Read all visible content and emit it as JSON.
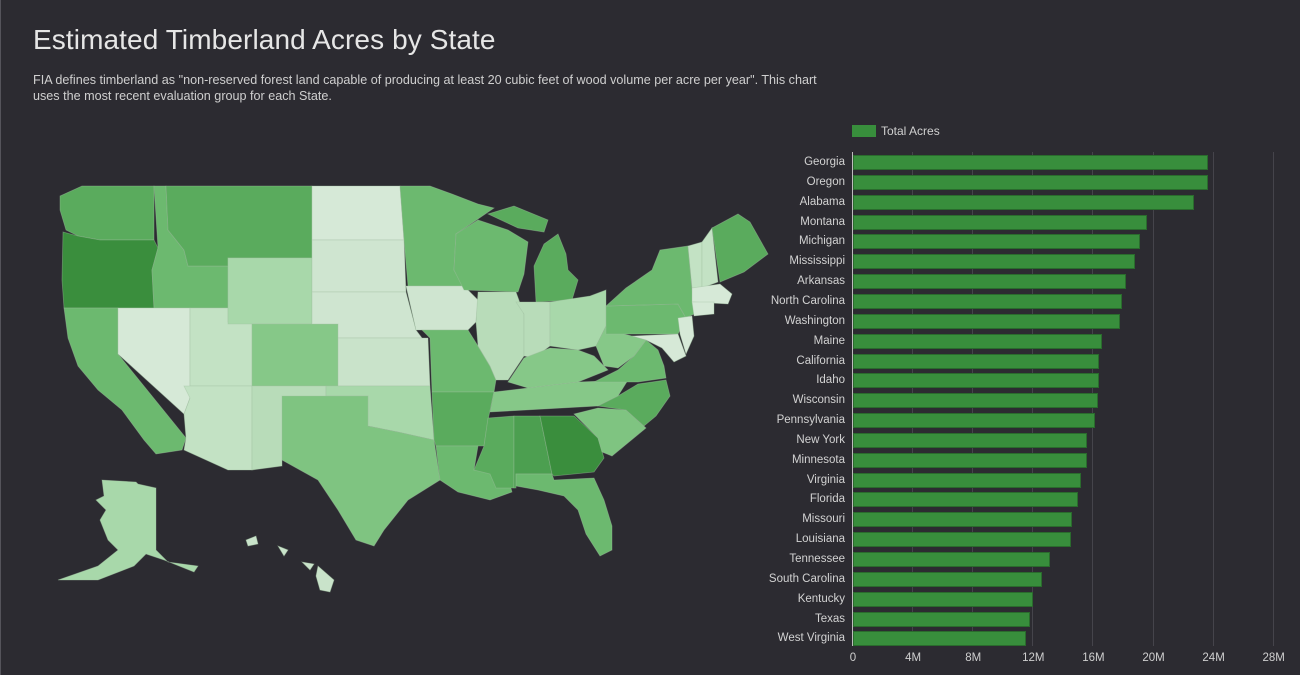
{
  "header": {
    "title": "Estimated Timberland Acres by State",
    "subtitle": "FIA defines timberland as \"non-reserved forest land capable of producing at least 20 cubic feet of wood volume per acre per year\". This chart uses the most recent evaluation group for each State."
  },
  "colors": {
    "background": "#2c2b31",
    "bar": "#388e3c",
    "gridline": "#45444b",
    "map_scale": [
      "#d6e9d7",
      "#c3e2c4",
      "#a8d8aa",
      "#86c888",
      "#6cb96f",
      "#5aab5d",
      "#4c9f50",
      "#3a8e3d"
    ]
  },
  "legend": {
    "label": "Total Acres"
  },
  "chart_data": [
    {
      "type": "bar",
      "orientation": "horizontal",
      "title": "Estimated Timberland Acres by State",
      "legend": [
        "Total Acres"
      ],
      "xlabel": "",
      "ylabel": "",
      "xlim": [
        0,
        28000000
      ],
      "x_ticks": [
        "0",
        "4M",
        "8M",
        "12M",
        "16M",
        "20M",
        "24M",
        "28M"
      ],
      "grid": true,
      "categories": [
        "Georgia",
        "Oregon",
        "Alabama",
        "Montana",
        "Michigan",
        "Mississippi",
        "Arkansas",
        "North Carolina",
        "Washington",
        "Maine",
        "California",
        "Idaho",
        "Wisconsin",
        "Pennsylvania",
        "New York",
        "Minnesota",
        "Virginia",
        "Florida",
        "Missouri",
        "Louisiana",
        "Tennessee",
        "South Carolina",
        "Kentucky",
        "Texas",
        "West Virginia"
      ],
      "series": [
        {
          "name": "Total Acres",
          "values": [
            23600000,
            23600000,
            22700000,
            19600000,
            19100000,
            18800000,
            18200000,
            17900000,
            17800000,
            16600000,
            16400000,
            16400000,
            16300000,
            16100000,
            15600000,
            15600000,
            15200000,
            15000000,
            14600000,
            14500000,
            13100000,
            12600000,
            12000000,
            11800000,
            11500000
          ]
        }
      ]
    },
    {
      "type": "choropleth-map",
      "title": "Estimated Timberland Acres by State (map)",
      "metric": "Total Acres",
      "region": "United States",
      "relative_shading": {
        "darkest": [
          "Georgia",
          "Oregon",
          "Alabama"
        ],
        "dark": [
          "Montana",
          "Michigan",
          "Mississippi",
          "Arkansas",
          "North Carolina",
          "Washington"
        ],
        "medium": [
          "Maine",
          "California",
          "Idaho",
          "Wisconsin",
          "Pennsylvania",
          "New York",
          "Minnesota",
          "Virginia",
          "Florida",
          "Missouri",
          "Louisiana"
        ],
        "medium_light": [
          "Tennessee",
          "South Carolina",
          "Kentucky",
          "Texas",
          "West Virginia",
          "Colorado"
        ],
        "light": [
          "Ohio",
          "Oklahoma",
          "Wyoming",
          "New Mexico",
          "Alaska",
          "Indiana",
          "Illinois"
        ],
        "lightest": [
          "Utah",
          "Arizona",
          "Nevada",
          "North Dakota",
          "South Dakota",
          "Nebraska",
          "Kansas",
          "Iowa",
          "Vermont",
          "New Hampshire",
          "Massachusetts",
          "Connecticut",
          "Rhode Island",
          "New Jersey",
          "Maryland",
          "Delaware",
          "Hawaii"
        ]
      }
    }
  ]
}
